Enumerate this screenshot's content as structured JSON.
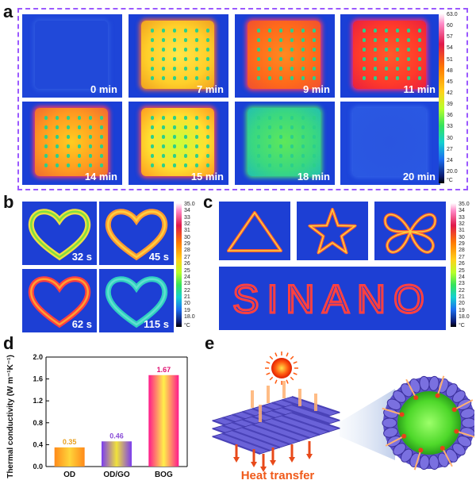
{
  "panel_labels": {
    "a": "a",
    "b": "b",
    "c": "c",
    "d": "d",
    "e": "e"
  },
  "panel_a": {
    "tiles": [
      "0 min",
      "7 min",
      "9 min",
      "11 min",
      "14 min",
      "15 min",
      "18 min",
      "20 min"
    ],
    "colorbar_ticks": [
      "63.0",
      "60",
      "57",
      "54",
      "51",
      "48",
      "45",
      "42",
      "39",
      "36",
      "33",
      "30",
      "27",
      "24",
      "20.0"
    ],
    "unit": "°C"
  },
  "panel_b": {
    "tiles": [
      "32 s",
      "45 s",
      "62 s",
      "115 s"
    ],
    "colorbar_ticks": [
      "35.0",
      "34",
      "33",
      "32",
      "31",
      "30",
      "29",
      "28",
      "27",
      "26",
      "25",
      "24",
      "23",
      "22",
      "21",
      "20",
      "19",
      "18.0"
    ],
    "unit": "°C"
  },
  "panel_c": {
    "word": "SINANO",
    "colorbar_ticks": [
      "35.0",
      "34",
      "33",
      "32",
      "31",
      "30",
      "29",
      "28",
      "27",
      "26",
      "25",
      "24",
      "23",
      "22",
      "21",
      "20",
      "19",
      "18.0"
    ],
    "unit": "°C"
  },
  "chart_data": {
    "type": "bar",
    "categories": [
      "OD",
      "OD/GO",
      "BOG"
    ],
    "values": [
      0.35,
      0.46,
      1.67
    ],
    "data_labels": [
      "0.35",
      "0.46",
      "1.67"
    ],
    "label_colors": [
      "#e8a020",
      "#8a4fd8",
      "#e01070"
    ],
    "ylabel": "Thermal conductivity (W m⁻¹K⁻¹)",
    "ylim": [
      0,
      2.0
    ],
    "yticks": [
      "0.0",
      "0.4",
      "0.8",
      "1.2",
      "1.6",
      "2.0"
    ]
  },
  "panel_e": {
    "caption": "Heat transfer"
  },
  "colors": {
    "panel_border": "#9b59ff",
    "tile_bg": "#1a3fd6",
    "heat_arrow": "#f05a1a"
  }
}
